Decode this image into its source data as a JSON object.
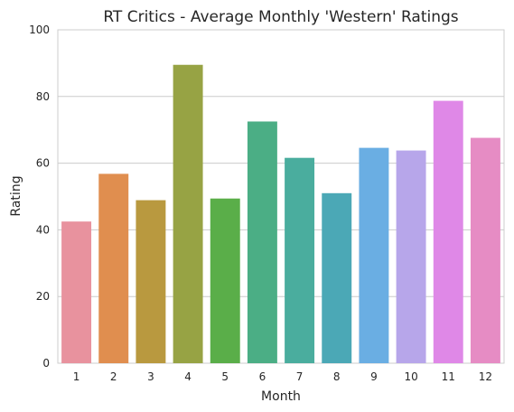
{
  "chart_data": {
    "type": "bar",
    "title": "RT Critics - Average Monthly 'Western' Ratings",
    "xlabel": "Month",
    "ylabel": "Rating",
    "categories": [
      "1",
      "2",
      "3",
      "4",
      "5",
      "6",
      "7",
      "8",
      "9",
      "10",
      "11",
      "12"
    ],
    "values": [
      42.5,
      56.8,
      48.9,
      89.5,
      49.4,
      72.5,
      61.6,
      51.0,
      64.6,
      63.8,
      78.7,
      67.6
    ],
    "ylim": [
      0,
      100
    ],
    "yticks": [
      "0",
      "20",
      "40",
      "60",
      "80",
      "100"
    ],
    "grid": true,
    "colors": [
      "#e8929e",
      "#e08e4f",
      "#b9993f",
      "#97a344",
      "#5aae49",
      "#4bae85",
      "#4aad9e",
      "#4ba8b6",
      "#6aaee3",
      "#b7a6ea",
      "#df88e7",
      "#e68cc4"
    ]
  }
}
